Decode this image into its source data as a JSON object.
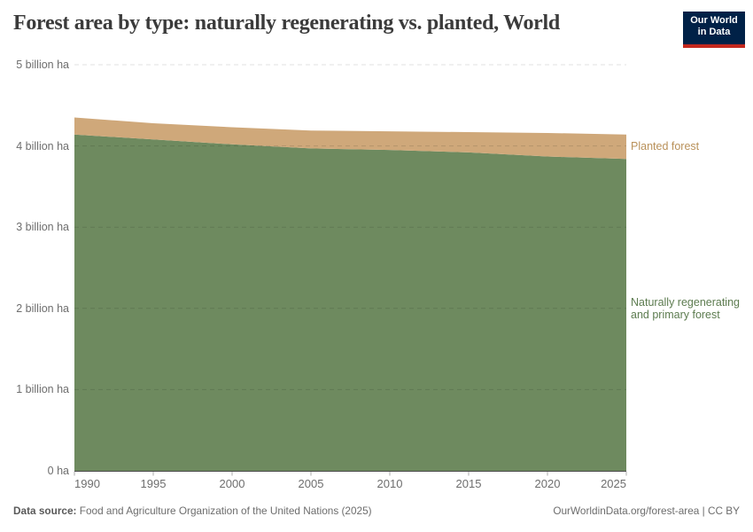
{
  "chart_data": {
    "type": "area",
    "stacked": true,
    "title": "Forest area by type: naturally regenerating vs. planted, World",
    "xlabel": "",
    "ylabel": "",
    "unit": "billion ha",
    "xlim": [
      1990,
      2025
    ],
    "ylim": [
      0,
      5
    ],
    "grid": "dashed-horizontal",
    "legend_position": "right-annotations",
    "x": [
      1990,
      1995,
      2000,
      2005,
      2010,
      2015,
      2020,
      2025
    ],
    "series": [
      {
        "name": "Naturally regenerating and primary forest",
        "label_lines": "Naturally regenerating and primary forest",
        "color": "#6e8a5f",
        "label_color": "#5d7c50",
        "values": [
          4.14,
          4.08,
          4.02,
          3.97,
          3.95,
          3.92,
          3.87,
          3.84
        ]
      },
      {
        "name": "Planted forest",
        "label_lines": "Planted forest",
        "color": "#cfa87a",
        "label_color": "#b9915a",
        "values": [
          0.21,
          0.2,
          0.21,
          0.22,
          0.23,
          0.25,
          0.29,
          0.3
        ]
      }
    ],
    "yticks": [
      {
        "value": 0,
        "label": "0 ha"
      },
      {
        "value": 1,
        "label": "1 billion ha"
      },
      {
        "value": 2,
        "label": "2 billion ha"
      },
      {
        "value": 3,
        "label": "3 billion ha"
      },
      {
        "value": 4,
        "label": "4 billion ha"
      },
      {
        "value": 5,
        "label": "5 billion ha"
      }
    ],
    "xticks": [
      "1990",
      "1995",
      "2000",
      "2005",
      "2010",
      "2015",
      "2020",
      "2025"
    ]
  },
  "header": {
    "logo": {
      "line1": "Our World",
      "line2": "in Data",
      "bg_color": "#002147",
      "bar_color": "#c4281e"
    }
  },
  "footer": {
    "source_label": "Data source:",
    "source_text": " Food and Agriculture Organization of the United Nations (2025)",
    "credit": "OurWorldinData.org/forest-area | CC BY"
  }
}
